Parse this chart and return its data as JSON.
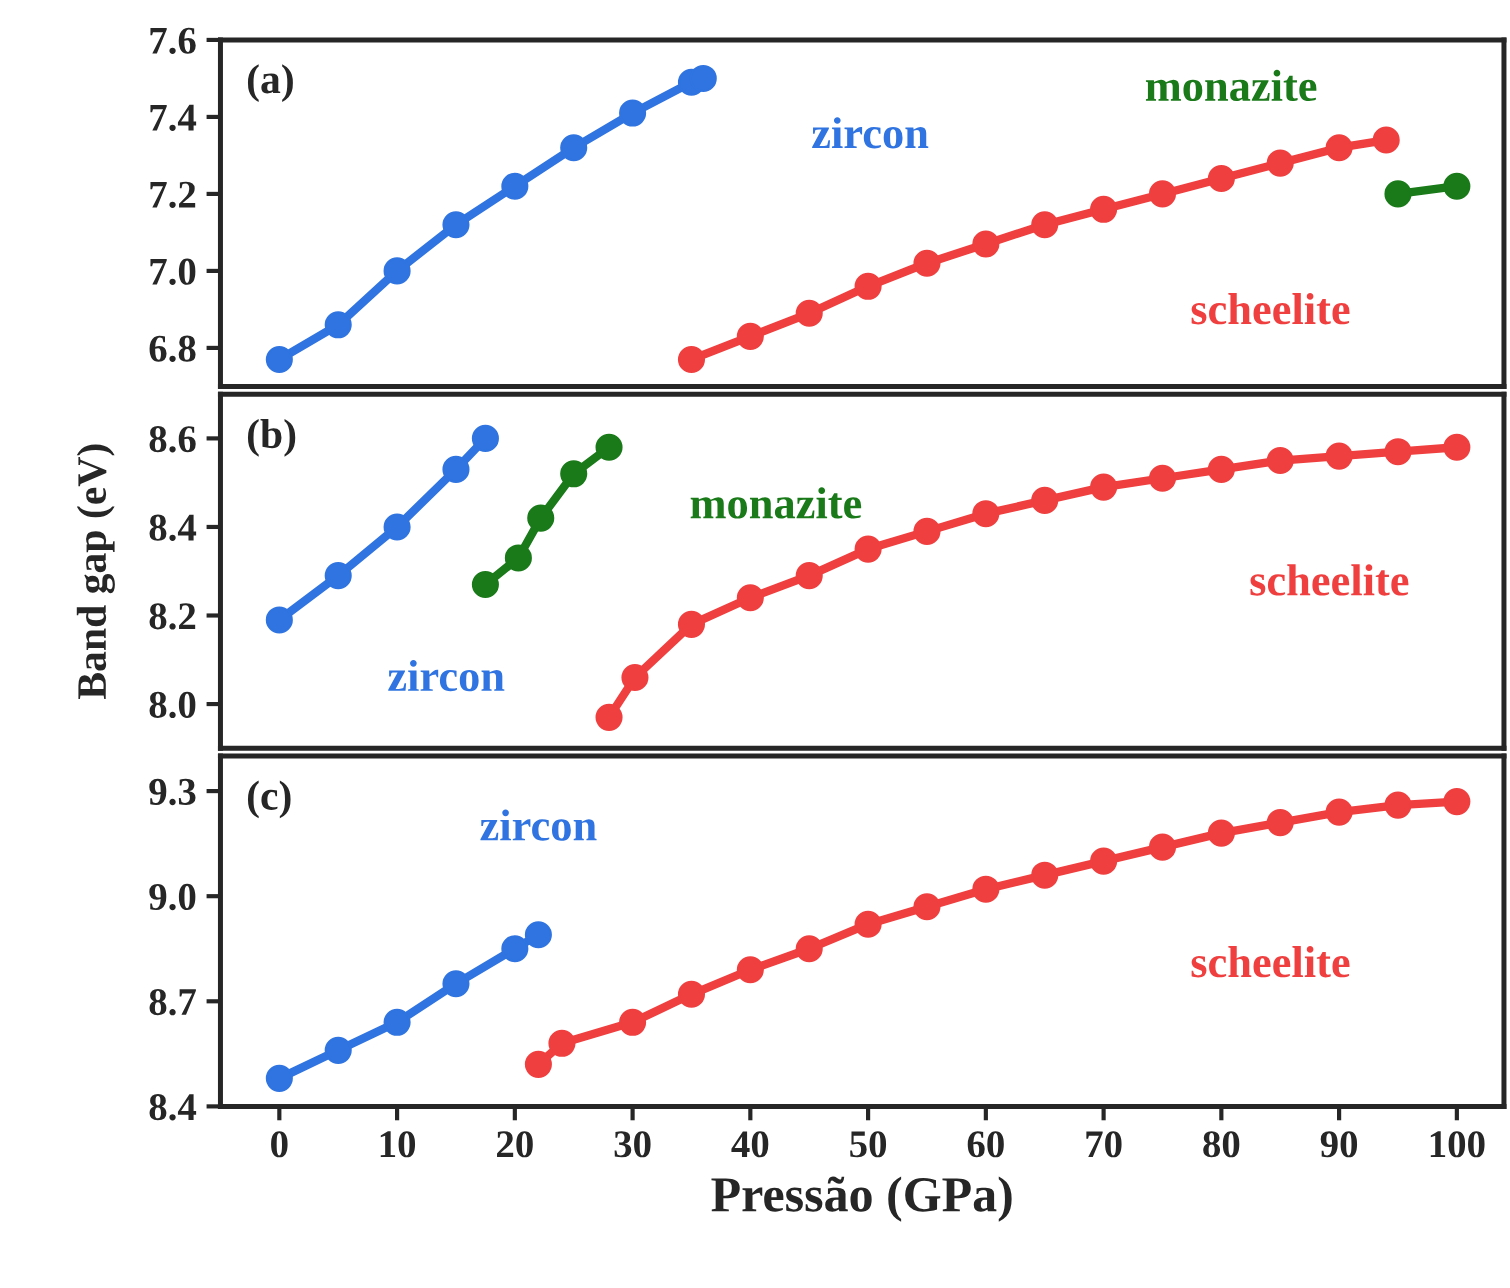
{
  "chart_data": [
    {
      "type": "line",
      "xlim": [
        -5,
        104
      ],
      "ylim": [
        6.7,
        7.6
      ],
      "yticks": [
        6.8,
        {
          "value": 7.0,
          "label": "7.0"
        },
        7.2,
        7.4,
        7.6
      ],
      "tick_labels": "y",
      "marker": "circle",
      "line_style": "solid",
      "grid": false,
      "legend": false,
      "series": [
        {
          "name": "zircon",
          "color": "#2f74e0",
          "x": [
            0,
            5,
            10,
            15,
            20,
            25,
            30,
            35,
            36
          ],
          "values": [
            6.77,
            6.86,
            7.0,
            7.12,
            7.22,
            7.32,
            7.41,
            7.49,
            7.5
          ]
        },
        {
          "name": "scheelite",
          "color": "#f03f3f",
          "x": [
            35,
            40,
            45,
            50,
            55,
            60,
            65,
            70,
            75,
            80,
            85,
            90,
            94
          ],
          "values": [
            6.77,
            6.83,
            6.89,
            6.96,
            7.02,
            7.07,
            7.12,
            7.16,
            7.2,
            7.24,
            7.28,
            7.32,
            7.34
          ]
        },
        {
          "name": "monazite",
          "color": "#1a7a1a",
          "x": [
            95,
            100
          ],
          "values": [
            7.2,
            7.22
          ]
        }
      ],
      "annotations": [
        "(a)"
      ]
    },
    {
      "type": "line",
      "xlim": [
        -5,
        104
      ],
      "ylim": [
        7.9,
        8.7
      ],
      "yticks": [
        {
          "value": 8.0,
          "label": "8.0"
        },
        8.2,
        8.4,
        8.6
      ],
      "tick_labels": "y",
      "marker": "circle",
      "line_style": "solid",
      "grid": false,
      "legend": false,
      "ylabel": "Band gap (eV)",
      "series": [
        {
          "name": "zircon",
          "color": "#2f74e0",
          "x": [
            0,
            5,
            10,
            15,
            17.5
          ],
          "values": [
            8.19,
            8.29,
            8.4,
            8.53,
            8.6
          ]
        },
        {
          "name": "monazite",
          "color": "#1a7a1a",
          "x": [
            17.5,
            20.3,
            22.2,
            25,
            28
          ],
          "values": [
            8.27,
            8.33,
            8.42,
            8.52,
            8.58
          ]
        },
        {
          "name": "scheelite",
          "color": "#f03f3f",
          "x": [
            28,
            30.2,
            35,
            40,
            45,
            50,
            55,
            60,
            65,
            70,
            75,
            80,
            85,
            90,
            95,
            100
          ],
          "values": [
            7.97,
            8.06,
            8.18,
            8.24,
            8.29,
            8.35,
            8.39,
            8.43,
            8.46,
            8.49,
            8.51,
            8.53,
            8.55,
            8.56,
            8.57,
            8.58
          ]
        }
      ],
      "annotations": [
        "(b)"
      ]
    },
    {
      "type": "line",
      "xlim": [
        -5,
        104
      ],
      "xticks": [
        0,
        10,
        20,
        30,
        40,
        50,
        60,
        70,
        80,
        90,
        100
      ],
      "ylim": [
        8.4,
        9.4
      ],
      "yticks": [
        8.4,
        8.7,
        {
          "value": 9.0,
          "label": "9.0"
        },
        9.3
      ],
      "marker": "circle",
      "line_style": "solid",
      "grid": false,
      "legend": false,
      "xlabel": "Pressão (GPa)",
      "series": [
        {
          "name": "zircon",
          "color": "#2f74e0",
          "x": [
            0,
            5,
            10,
            15,
            20,
            22
          ],
          "values": [
            8.48,
            8.56,
            8.64,
            8.75,
            8.85,
            8.89
          ]
        },
        {
          "name": "scheelite",
          "color": "#f03f3f",
          "x": [
            22,
            24,
            30,
            35,
            40,
            45,
            50,
            55,
            60,
            65,
            70,
            75,
            80,
            85,
            90,
            95,
            100
          ],
          "values": [
            8.52,
            8.58,
            8.64,
            8.72,
            8.79,
            8.85,
            8.92,
            8.97,
            9.02,
            9.06,
            9.1,
            9.14,
            9.18,
            9.21,
            9.24,
            9.26,
            9.27
          ]
        }
      ],
      "annotations": [
        "(c)"
      ]
    }
  ]
}
